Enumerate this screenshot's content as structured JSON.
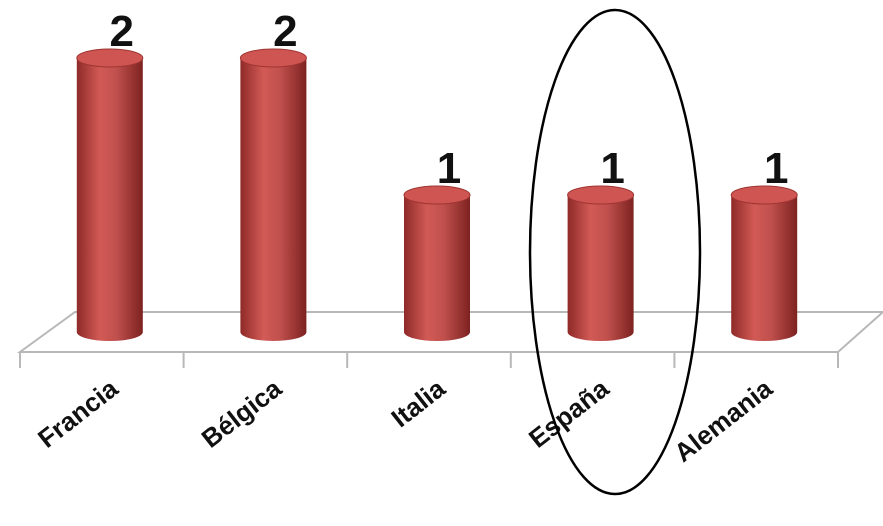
{
  "chart_data": {
    "type": "bar",
    "categories": [
      "Francia",
      "Bélgica",
      "Italia",
      "España",
      "Alemania"
    ],
    "values": [
      2,
      2,
      1,
      1,
      1
    ],
    "color": "#c0504d"
  }
}
